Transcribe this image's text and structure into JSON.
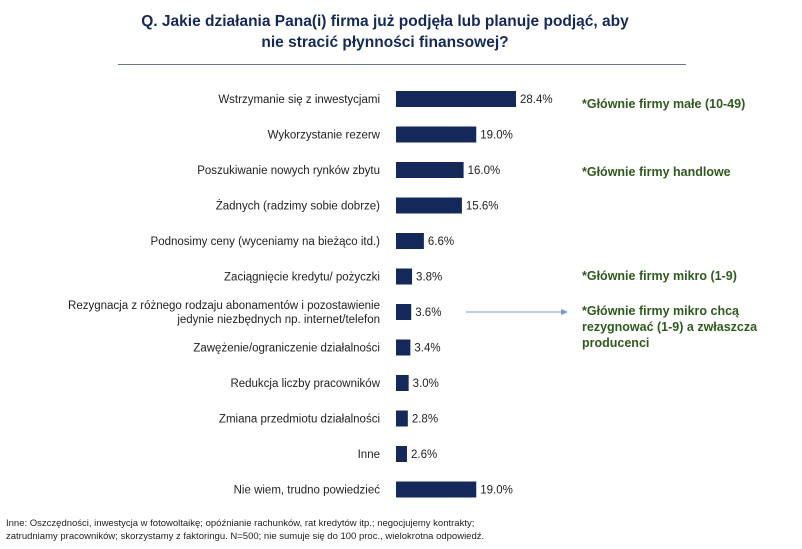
{
  "chart_data": {
    "type": "bar",
    "orientation": "horizontal",
    "title_lines": [
      "Q. Jakie działania Pana(i) firma już podjęła lub planuje podjąć, aby",
      "nie stracić płynności finansowej?"
    ],
    "categories": [
      [
        "Wstrzymanie się z inwestycjami"
      ],
      [
        "Wykorzystanie rezerw"
      ],
      [
        "Poszukiwanie nowych rynków zbytu"
      ],
      [
        "Żadnych (radzimy sobie dobrze)"
      ],
      [
        "Podnosimy ceny (wyceniamy na bieżąco itd.)"
      ],
      [
        "Zaciągnięcie kredytu/ pożyczki"
      ],
      [
        "Rezygnacja z różnego rodzaju abonamentów i pozostawienie",
        "jedynie niezbędnych np. internet/telefon"
      ],
      [
        "Zawężenie/ograniczenie działalności"
      ],
      [
        "Redukcja liczby pracowników"
      ],
      [
        "Zmiana przedmiotu działalności"
      ],
      [
        "Inne"
      ],
      [
        "Nie wiem, trudno powiedzieć"
      ]
    ],
    "values": [
      28.4,
      19.0,
      16.0,
      15.6,
      6.6,
      3.8,
      3.6,
      3.4,
      3.0,
      2.8,
      2.6,
      19.0
    ],
    "value_labels": [
      "28.4%",
      "19.0%",
      "16.0%",
      "15.6%",
      "6.6%",
      "3.8%",
      "3.6%",
      "3.4%",
      "3.0%",
      "2.8%",
      "2.6%",
      "19.0%"
    ],
    "unit": "%",
    "bar_color": "#14285a",
    "xlim": [
      0,
      40
    ]
  },
  "annotations": [
    {
      "row": 0,
      "lines": [
        "*Głównie firmy małe (10-49)"
      ]
    },
    {
      "row": 2,
      "lines": [
        "*Głównie firmy handlowe"
      ]
    },
    {
      "row": 5,
      "lines": [
        "*Głównie firmy mikro (1-9)"
      ]
    },
    {
      "row": 6,
      "lines": [
        "*Głównie firmy mikro chcą",
        "rezygnować (1-9) a zwłaszcza",
        "producenci"
      ],
      "arrow": true
    }
  ],
  "colors": {
    "title": "#14285a",
    "annotation": "#2f5a1e",
    "arrow": "#7a9cc8",
    "rule": "#6b7890"
  },
  "footnote_lines": [
    "Inne: Oszczędności, inwestycja w fotowoltaikę; opóźnianie rachunków, rat kredytów itp.; negocjujemy kontrakty;",
    "zatrudniamy pracowników; skorzystamy z faktoringu. N=500; nie sumuje się do 100 proc., wielokrotna odpowiedź."
  ]
}
